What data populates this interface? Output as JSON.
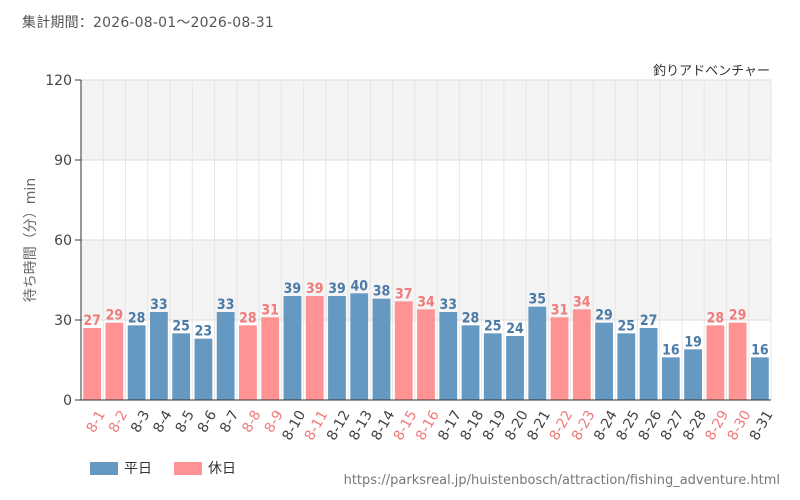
{
  "header": {
    "period": "集計期間：2026-08-01～2026-08-31"
  },
  "source_url": "https://parksreal.jp/huistenbosch/attraction/fishing_adventure.html",
  "colors": {
    "weekday": "#6699c2",
    "holiday": "#ff9393",
    "weekday_label": "#4a7ba6",
    "holiday_label": "#f07b7b"
  },
  "chart_data": {
    "type": "bar",
    "title": "釣りアドベンチャー",
    "ylabel": "待ち時間（分）min",
    "xlabel": "",
    "ylim": [
      0,
      120
    ],
    "yticks": [
      0,
      30,
      60,
      90,
      120
    ],
    "grid": true,
    "legend_position": "bottom-left",
    "categories": [
      "8-1",
      "8-2",
      "8-3",
      "8-4",
      "8-5",
      "8-6",
      "8-7",
      "8-8",
      "8-9",
      "8-10",
      "8-11",
      "8-12",
      "8-13",
      "8-14",
      "8-15",
      "8-16",
      "8-17",
      "8-18",
      "8-19",
      "8-20",
      "8-21",
      "8-22",
      "8-23",
      "8-24",
      "8-25",
      "8-26",
      "8-27",
      "8-28",
      "8-29",
      "8-30",
      "8-31"
    ],
    "values": [
      27,
      29,
      28,
      33,
      25,
      23,
      33,
      28,
      31,
      39,
      39,
      39,
      40,
      38,
      37,
      34,
      33,
      28,
      25,
      24,
      35,
      31,
      34,
      29,
      25,
      27,
      16,
      19,
      28,
      29,
      16
    ],
    "day_type": [
      "holiday",
      "holiday",
      "weekday",
      "weekday",
      "weekday",
      "weekday",
      "weekday",
      "holiday",
      "holiday",
      "weekday",
      "holiday",
      "weekday",
      "weekday",
      "weekday",
      "holiday",
      "holiday",
      "weekday",
      "weekday",
      "weekday",
      "weekday",
      "weekday",
      "holiday",
      "holiday",
      "weekday",
      "weekday",
      "weekday",
      "weekday",
      "weekday",
      "holiday",
      "holiday",
      "weekday"
    ],
    "legend": [
      {
        "key": "weekday",
        "label": "平日"
      },
      {
        "key": "holiday",
        "label": "休日"
      }
    ]
  }
}
